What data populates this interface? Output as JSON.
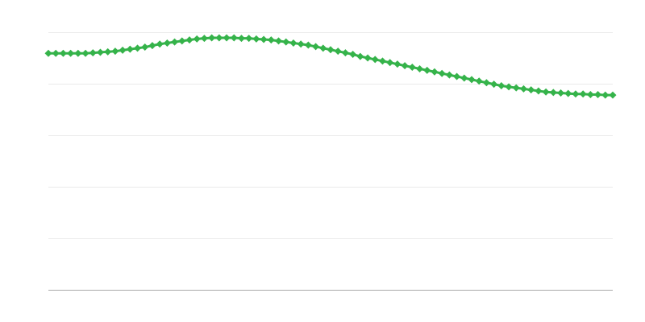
{
  "chart_data": {
    "type": "line",
    "title": "",
    "xlabel": "",
    "ylabel": "",
    "ylim": [
      0,
      5
    ],
    "grid": true,
    "marker": "diamond",
    "series": [
      {
        "color": "#35b34a",
        "values": [
          4.59,
          4.59,
          4.59,
          4.59,
          4.59,
          4.59,
          4.6,
          4.61,
          4.62,
          4.63,
          4.65,
          4.67,
          4.69,
          4.71,
          4.74,
          4.77,
          4.79,
          4.81,
          4.83,
          4.85,
          4.87,
          4.88,
          4.89,
          4.89,
          4.89,
          4.89,
          4.88,
          4.88,
          4.87,
          4.86,
          4.85,
          4.83,
          4.81,
          4.79,
          4.77,
          4.75,
          4.72,
          4.69,
          4.66,
          4.63,
          4.6,
          4.57,
          4.53,
          4.5,
          4.47,
          4.44,
          4.41,
          4.38,
          4.35,
          4.32,
          4.29,
          4.26,
          4.23,
          4.2,
          4.17,
          4.14,
          4.11,
          4.08,
          4.05,
          4.02,
          3.99,
          3.96,
          3.94,
          3.92,
          3.9,
          3.88,
          3.86,
          3.84,
          3.83,
          3.82,
          3.81,
          3.8,
          3.8,
          3.79,
          3.79,
          3.78,
          3.78
        ]
      }
    ],
    "colors": {
      "grid": "#ebebeb",
      "axis": "#aaaaaa"
    }
  }
}
